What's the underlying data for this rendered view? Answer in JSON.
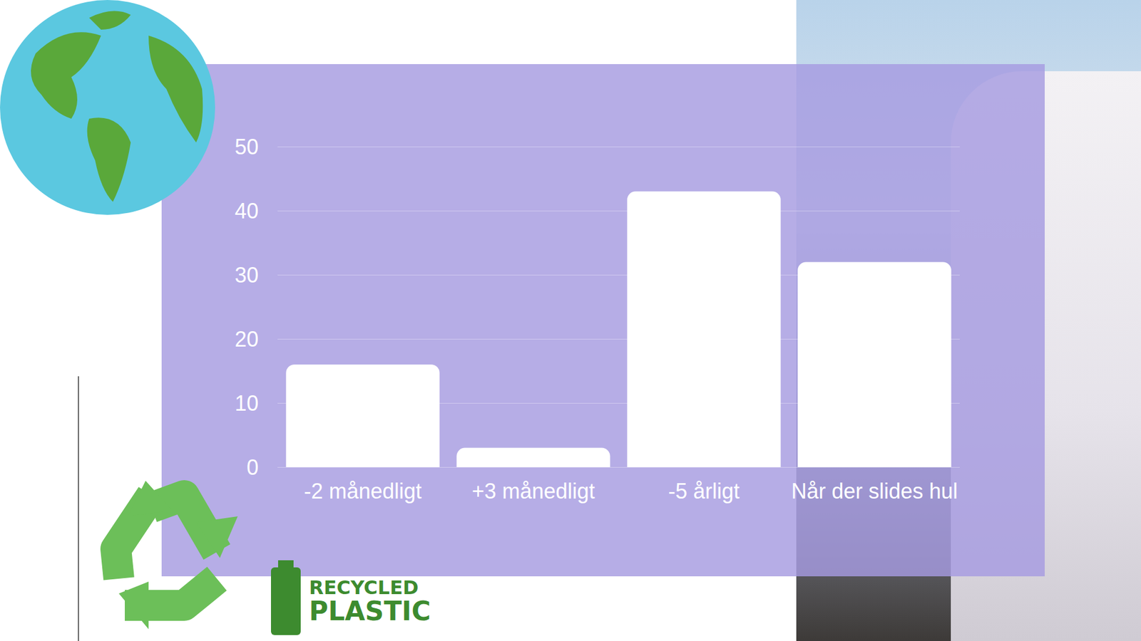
{
  "chart_data": {
    "type": "bar",
    "categories": [
      "-2 månedligt",
      "+3 månedligt",
      "-5 årligt",
      "Når der slides hul"
    ],
    "values": [
      16,
      3,
      43,
      32
    ],
    "color": "#ffffff",
    "ylim": [
      0,
      50
    ],
    "yticks": [
      0,
      10,
      20,
      30,
      40,
      50
    ],
    "grid": true,
    "annotations": [
      "RECYCLED",
      "PLASTIC"
    ]
  }
}
